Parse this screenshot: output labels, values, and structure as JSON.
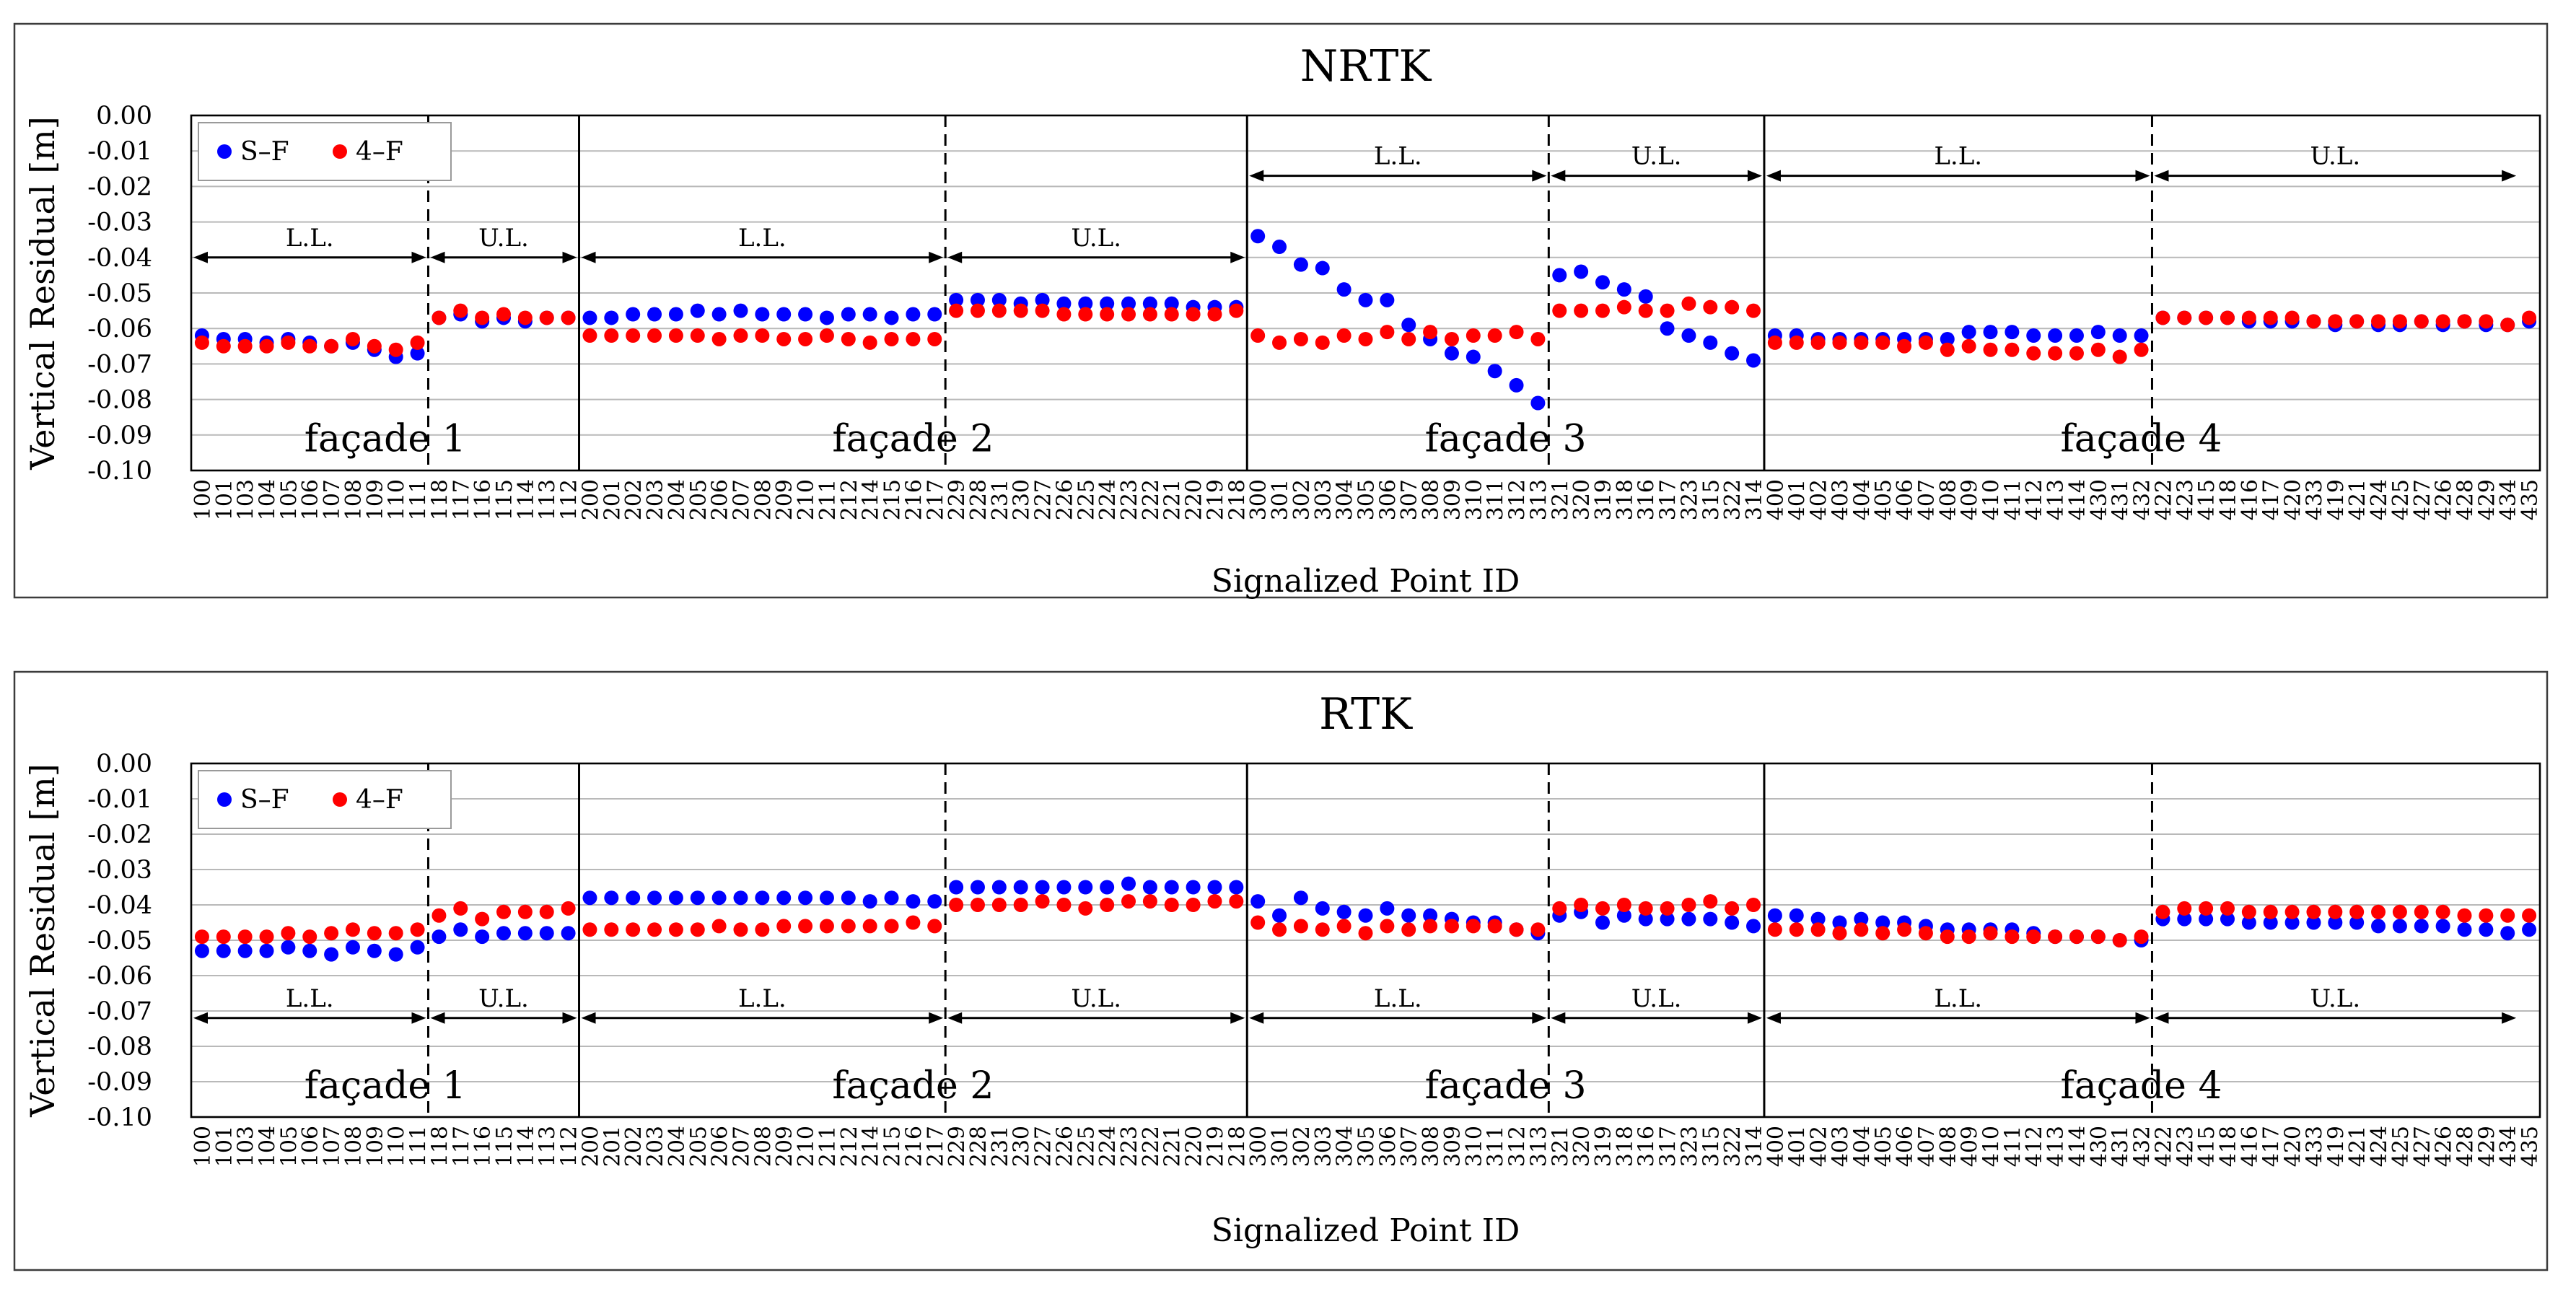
{
  "chart_data": [
    {
      "type": "scatter",
      "title": "NRTK",
      "xlabel": "Signalized Point ID",
      "ylabel": "Vertical Residual [m]",
      "ylim": [
        -0.1,
        0.0
      ],
      "yticks": [
        "0.00",
        "-0.01",
        "-0.02",
        "-0.03",
        "-0.04",
        "-0.05",
        "-0.06",
        "-0.07",
        "-0.08",
        "-0.09",
        "-0.10"
      ],
      "grid": true,
      "legend_position": "top-left",
      "categories": [
        "100",
        "101",
        "103",
        "104",
        "105",
        "106",
        "107",
        "108",
        "109",
        "110",
        "111",
        "118",
        "117",
        "116",
        "115",
        "114",
        "113",
        "112",
        "200",
        "201",
        "202",
        "203",
        "204",
        "205",
        "206",
        "207",
        "208",
        "209",
        "210",
        "211",
        "212",
        "214",
        "215",
        "216",
        "217",
        "229",
        "228",
        "231",
        "230",
        "227",
        "226",
        "225",
        "224",
        "223",
        "222",
        "221",
        "220",
        "219",
        "218",
        "300",
        "301",
        "302",
        "303",
        "304",
        "305",
        "306",
        "307",
        "308",
        "309",
        "310",
        "311",
        "312",
        "313",
        "321",
        "320",
        "319",
        "318",
        "316",
        "317",
        "323",
        "315",
        "322",
        "314",
        "400",
        "401",
        "402",
        "403",
        "404",
        "405",
        "406",
        "407",
        "408",
        "409",
        "410",
        "411",
        "412",
        "413",
        "414",
        "430",
        "431",
        "432",
        "422",
        "423",
        "415",
        "418",
        "416",
        "417",
        "420",
        "433",
        "419",
        "421",
        "424",
        "425",
        "427",
        "426",
        "428",
        "429",
        "434",
        "435"
      ],
      "facades": [
        {
          "label": "façade 1",
          "start": 0,
          "end": 18,
          "split": 11
        },
        {
          "label": "façade 2",
          "start": 18,
          "end": 49,
          "split": 35
        },
        {
          "label": "façade 3",
          "start": 49,
          "end": 73,
          "split": 63
        },
        {
          "label": "façade 4",
          "start": 73,
          "end": 108,
          "split": 91
        }
      ],
      "segment_labels": {
        "lower": "L.L.",
        "upper": "U.L."
      },
      "annotation_levels": {
        "ll_f1": -0.04,
        "ll_f2": -0.04,
        "ll_f3": -0.017,
        "ll_f4": -0.017,
        "facade_label": -0.091
      },
      "series": [
        {
          "name": "S–F",
          "color": "#0000ff",
          "values": [
            -0.062,
            -0.063,
            -0.063,
            -0.064,
            -0.063,
            -0.064,
            -0.065,
            -0.064,
            -0.066,
            -0.068,
            -0.067,
            -0.057,
            -0.056,
            -0.058,
            -0.057,
            -0.058,
            -0.057,
            -0.057,
            -0.057,
            -0.057,
            -0.056,
            -0.056,
            -0.056,
            -0.055,
            -0.056,
            -0.055,
            -0.056,
            -0.056,
            -0.056,
            -0.057,
            -0.056,
            -0.056,
            -0.057,
            -0.056,
            -0.056,
            -0.052,
            -0.052,
            -0.052,
            -0.053,
            -0.052,
            -0.053,
            -0.053,
            -0.053,
            -0.053,
            -0.053,
            -0.053,
            -0.054,
            -0.054,
            -0.054,
            -0.034,
            -0.037,
            -0.042,
            -0.043,
            -0.049,
            -0.052,
            -0.052,
            -0.059,
            -0.063,
            -0.067,
            -0.068,
            -0.072,
            -0.076,
            -0.081,
            -0.045,
            -0.044,
            -0.047,
            -0.049,
            -0.051,
            -0.06,
            -0.062,
            -0.064,
            -0.067,
            -0.069,
            -0.062,
            -0.062,
            -0.063,
            -0.063,
            -0.063,
            -0.063,
            -0.063,
            -0.063,
            -0.063,
            -0.061,
            -0.061,
            -0.061,
            -0.062,
            -0.062,
            -0.062,
            -0.061,
            -0.062,
            -0.062,
            -0.057,
            -0.057,
            -0.057,
            -0.057,
            -0.058,
            -0.058,
            -0.058,
            -0.058,
            -0.059,
            -0.058,
            -0.059,
            -0.059,
            -0.058,
            -0.059,
            -0.058,
            -0.059,
            -0.059,
            -0.058
          ]
        },
        {
          "name": "4–F",
          "color": "#ff0000",
          "values": [
            -0.064,
            -0.065,
            -0.065,
            -0.065,
            -0.064,
            -0.065,
            -0.065,
            -0.063,
            -0.065,
            -0.066,
            -0.064,
            -0.057,
            -0.055,
            -0.057,
            -0.056,
            -0.057,
            -0.057,
            -0.057,
            -0.062,
            -0.062,
            -0.062,
            -0.062,
            -0.062,
            -0.062,
            -0.063,
            -0.062,
            -0.062,
            -0.063,
            -0.063,
            -0.062,
            -0.063,
            -0.064,
            -0.063,
            -0.063,
            -0.063,
            -0.055,
            -0.055,
            -0.055,
            -0.055,
            -0.055,
            -0.056,
            -0.056,
            -0.056,
            -0.056,
            -0.056,
            -0.056,
            -0.056,
            -0.056,
            -0.055,
            -0.062,
            -0.064,
            -0.063,
            -0.064,
            -0.062,
            -0.063,
            -0.061,
            -0.063,
            -0.061,
            -0.063,
            -0.062,
            -0.062,
            -0.061,
            -0.063,
            -0.055,
            -0.055,
            -0.055,
            -0.054,
            -0.055,
            -0.055,
            -0.053,
            -0.054,
            -0.054,
            -0.055,
            -0.064,
            -0.064,
            -0.064,
            -0.064,
            -0.064,
            -0.064,
            -0.065,
            -0.064,
            -0.066,
            -0.065,
            -0.066,
            -0.066,
            -0.067,
            -0.067,
            -0.067,
            -0.066,
            -0.068,
            -0.066,
            -0.057,
            -0.057,
            -0.057,
            -0.057,
            -0.057,
            -0.057,
            -0.057,
            -0.058,
            -0.058,
            -0.058,
            -0.058,
            -0.058,
            -0.058,
            -0.058,
            -0.058,
            -0.058,
            -0.059,
            -0.057
          ]
        }
      ]
    },
    {
      "type": "scatter",
      "title": "RTK",
      "xlabel": "Signalized Point ID",
      "ylabel": "Vertical Residual [m]",
      "ylim": [
        -0.1,
        0.0
      ],
      "yticks": [
        "0.00",
        "-0.01",
        "-0.02",
        "-0.03",
        "-0.04",
        "-0.05",
        "-0.06",
        "-0.07",
        "-0.08",
        "-0.09",
        "-0.10"
      ],
      "grid": true,
      "legend_position": "top-left",
      "categories": [
        "100",
        "101",
        "103",
        "104",
        "105",
        "106",
        "107",
        "108",
        "109",
        "110",
        "111",
        "118",
        "117",
        "116",
        "115",
        "114",
        "113",
        "112",
        "200",
        "201",
        "202",
        "203",
        "204",
        "205",
        "206",
        "207",
        "208",
        "209",
        "210",
        "211",
        "212",
        "214",
        "215",
        "216",
        "217",
        "229",
        "228",
        "231",
        "230",
        "227",
        "226",
        "225",
        "224",
        "223",
        "222",
        "221",
        "220",
        "219",
        "218",
        "300",
        "301",
        "302",
        "303",
        "304",
        "305",
        "306",
        "307",
        "308",
        "309",
        "310",
        "311",
        "312",
        "313",
        "321",
        "320",
        "319",
        "318",
        "316",
        "317",
        "323",
        "315",
        "322",
        "314",
        "400",
        "401",
        "402",
        "403",
        "404",
        "405",
        "406",
        "407",
        "408",
        "409",
        "410",
        "411",
        "412",
        "413",
        "414",
        "430",
        "431",
        "432",
        "422",
        "423",
        "415",
        "418",
        "416",
        "417",
        "420",
        "433",
        "419",
        "421",
        "424",
        "425",
        "427",
        "426",
        "428",
        "429",
        "434",
        "435"
      ],
      "facades": [
        {
          "label": "façade 1",
          "start": 0,
          "end": 18,
          "split": 11
        },
        {
          "label": "façade 2",
          "start": 18,
          "end": 49,
          "split": 35
        },
        {
          "label": "façade 3",
          "start": 49,
          "end": 73,
          "split": 63
        },
        {
          "label": "façade 4",
          "start": 73,
          "end": 108,
          "split": 91
        }
      ],
      "segment_labels": {
        "lower": "L.L.",
        "upper": "U.L."
      },
      "annotation_levels": {
        "ll_f1": -0.072,
        "ll_f2": -0.072,
        "ll_f3": -0.072,
        "ll_f4": -0.072,
        "facade_label": -0.091
      },
      "series": [
        {
          "name": "S–F",
          "color": "#0000ff",
          "values": [
            -0.053,
            -0.053,
            -0.053,
            -0.053,
            -0.052,
            -0.053,
            -0.054,
            -0.052,
            -0.053,
            -0.054,
            -0.052,
            -0.049,
            -0.047,
            -0.049,
            -0.048,
            -0.048,
            -0.048,
            -0.048,
            -0.038,
            -0.038,
            -0.038,
            -0.038,
            -0.038,
            -0.038,
            -0.038,
            -0.038,
            -0.038,
            -0.038,
            -0.038,
            -0.038,
            -0.038,
            -0.039,
            -0.038,
            -0.039,
            -0.039,
            -0.035,
            -0.035,
            -0.035,
            -0.035,
            -0.035,
            -0.035,
            -0.035,
            -0.035,
            -0.034,
            -0.035,
            -0.035,
            -0.035,
            -0.035,
            -0.035,
            -0.039,
            -0.043,
            -0.038,
            -0.041,
            -0.042,
            -0.043,
            -0.041,
            -0.043,
            -0.043,
            -0.044,
            -0.045,
            -0.045,
            -0.047,
            -0.048,
            -0.043,
            -0.042,
            -0.045,
            -0.043,
            -0.044,
            -0.044,
            -0.044,
            -0.044,
            -0.045,
            -0.046,
            -0.043,
            -0.043,
            -0.044,
            -0.045,
            -0.044,
            -0.045,
            -0.045,
            -0.046,
            -0.047,
            -0.047,
            -0.047,
            -0.047,
            -0.048,
            -0.049,
            -0.049,
            -0.049,
            -0.05,
            -0.05,
            -0.044,
            -0.044,
            -0.044,
            -0.044,
            -0.045,
            -0.045,
            -0.045,
            -0.045,
            -0.045,
            -0.045,
            -0.046,
            -0.046,
            -0.046,
            -0.046,
            -0.047,
            -0.047,
            -0.048,
            -0.047
          ]
        },
        {
          "name": "4–F",
          "color": "#ff0000",
          "values": [
            -0.049,
            -0.049,
            -0.049,
            -0.049,
            -0.048,
            -0.049,
            -0.048,
            -0.047,
            -0.048,
            -0.048,
            -0.047,
            -0.043,
            -0.041,
            -0.044,
            -0.042,
            -0.042,
            -0.042,
            -0.041,
            -0.047,
            -0.047,
            -0.047,
            -0.047,
            -0.047,
            -0.047,
            -0.046,
            -0.047,
            -0.047,
            -0.046,
            -0.046,
            -0.046,
            -0.046,
            -0.046,
            -0.046,
            -0.045,
            -0.046,
            -0.04,
            -0.04,
            -0.04,
            -0.04,
            -0.039,
            -0.04,
            -0.041,
            -0.04,
            -0.039,
            -0.039,
            -0.04,
            -0.04,
            -0.039,
            -0.039,
            -0.045,
            -0.047,
            -0.046,
            -0.047,
            -0.046,
            -0.048,
            -0.046,
            -0.047,
            -0.046,
            -0.046,
            -0.046,
            -0.046,
            -0.047,
            -0.047,
            -0.041,
            -0.04,
            -0.041,
            -0.04,
            -0.041,
            -0.041,
            -0.04,
            -0.039,
            -0.041,
            -0.04,
            -0.047,
            -0.047,
            -0.047,
            -0.048,
            -0.047,
            -0.048,
            -0.047,
            -0.048,
            -0.049,
            -0.049,
            -0.048,
            -0.049,
            -0.049,
            -0.049,
            -0.049,
            -0.049,
            -0.05,
            -0.049,
            -0.042,
            -0.041,
            -0.041,
            -0.041,
            -0.042,
            -0.042,
            -0.042,
            -0.042,
            -0.042,
            -0.042,
            -0.042,
            -0.042,
            -0.042,
            -0.042,
            -0.043,
            -0.043,
            -0.043,
            -0.043
          ]
        }
      ]
    }
  ]
}
